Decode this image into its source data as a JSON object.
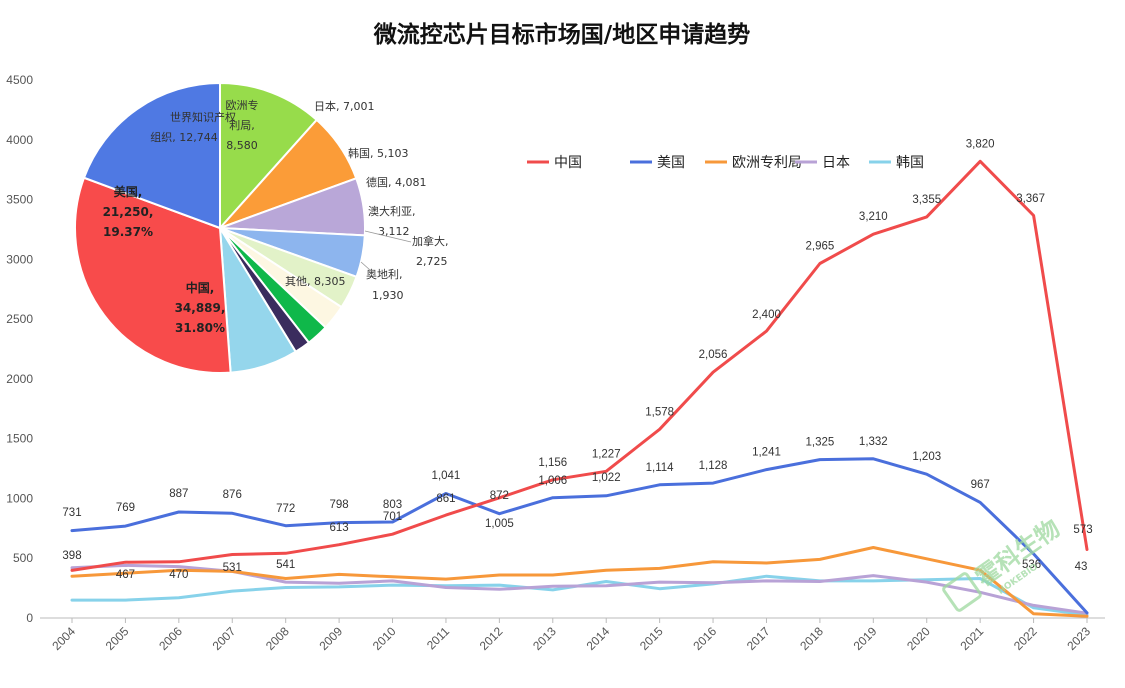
{
  "chart_data": [
    {
      "type": "line",
      "title": "微流控芯片目标市场国/地区申请趋势",
      "x": [
        "2004",
        "2005",
        "2006",
        "2007",
        "2008",
        "2009",
        "2010",
        "2011",
        "2012",
        "2013",
        "2014",
        "2015",
        "2016",
        "2017",
        "2018",
        "2019",
        "2020",
        "2021",
        "2022",
        "2023"
      ],
      "ylim": [
        0,
        4500
      ],
      "yticks": [
        0,
        500,
        1000,
        1500,
        2000,
        2500,
        3000,
        3500,
        4000,
        4500
      ],
      "grid": false,
      "legend_position": "top-right",
      "series": [
        {
          "name": "中国",
          "color": "#f04b4b",
          "labeled": true,
          "values": [
            398,
            467,
            470,
            531,
            541,
            613,
            701,
            861,
            1005,
            1156,
            1227,
            1578,
            2056,
            2400,
            2965,
            3210,
            3355,
            3820,
            3367,
            573
          ]
        },
        {
          "name": "美国",
          "color": "#4a6fdc",
          "labeled": true,
          "values": [
            731,
            769,
            887,
            876,
            772,
            798,
            803,
            1041,
            872,
            1006,
            1022,
            1114,
            1128,
            1241,
            1325,
            1332,
            1203,
            967,
            536,
            43
          ]
        },
        {
          "name": "欧洲专利局",
          "color": "#f7983a",
          "labeled": false,
          "values": [
            350,
            375,
            400,
            390,
            330,
            365,
            345,
            325,
            360,
            360,
            400,
            415,
            470,
            460,
            490,
            590,
            495,
            400,
            35,
            15
          ]
        },
        {
          "name": "日本",
          "color": "#b8a2d6",
          "labeled": false,
          "values": [
            420,
            440,
            430,
            390,
            300,
            290,
            310,
            255,
            240,
            265,
            270,
            300,
            295,
            310,
            305,
            355,
            300,
            215,
            105,
            40
          ]
        },
        {
          "name": "韩国",
          "color": "#87d2ea",
          "labeled": false,
          "values": [
            150,
            150,
            170,
            225,
            255,
            260,
            275,
            270,
            275,
            235,
            305,
            245,
            285,
            350,
            310,
            310,
            320,
            330,
            85,
            25
          ]
        }
      ]
    },
    {
      "type": "pie",
      "slices": [
        {
          "label": "中国, 34,889, 31.80%",
          "name": "中国",
          "value": 34889,
          "pct": "31.80%",
          "color": "#f84b4b"
        },
        {
          "label": "美国, 21,250, 19.37%",
          "name": "美国",
          "value": 21250,
          "pct": "19.37%",
          "color": "#4f79e3"
        },
        {
          "label": "世界知识产权组织, 12,744",
          "name": "世界知识产权组织",
          "value": 12744,
          "color": "#97dc4b"
        },
        {
          "label": "欧洲专利局, 8,580",
          "name": "欧洲专利局",
          "value": 8580,
          "color": "#fb9c38"
        },
        {
          "label": "日本, 7,001",
          "name": "日本",
          "value": 7001,
          "color": "#b9a7d8"
        },
        {
          "label": "韩国, 5,103",
          "name": "韩国",
          "value": 5103,
          "color": "#8db5ee"
        },
        {
          "label": "德国, 4,081",
          "name": "德国",
          "value": 4081,
          "color": "#e2f2c8"
        },
        {
          "label": "澳大利亚, 3,112",
          "name": "澳大利亚",
          "value": 3112,
          "color": "#fdf7e2"
        },
        {
          "label": "加拿大, 2,725",
          "name": "加拿大",
          "value": 2725,
          "color": "#0fb84a"
        },
        {
          "label": "奥地利, 1,930",
          "name": "奥地利",
          "value": 1930,
          "color": "#3a2c5e"
        },
        {
          "label": "其他, 8,305",
          "name": "其他",
          "value": 8305,
          "color": "#95d6ec"
        }
      ]
    }
  ],
  "watermark": {
    "text": "霍科生物",
    "subtext": "HOKEBIO",
    "color": "#9ed9a0"
  },
  "labels": {
    "china": [
      "中国,",
      "34,889,",
      "31.80%"
    ],
    "usa": [
      "美国,",
      "21,250,",
      "19.37%"
    ],
    "wipo": [
      "世界知识产权",
      "组织, 12,744"
    ],
    "epo": [
      "欧洲专",
      "利局,",
      "8,580"
    ],
    "japan": "日本, 7,001",
    "korea": "韩国, 5,103",
    "germany": "德国, 4,081",
    "australia": [
      "澳大利亚,",
      "3,112"
    ],
    "canada": [
      "加拿大,",
      "2,725"
    ],
    "austria": [
      "奥地利,",
      "1,930"
    ],
    "other": "其他, 8,305"
  }
}
